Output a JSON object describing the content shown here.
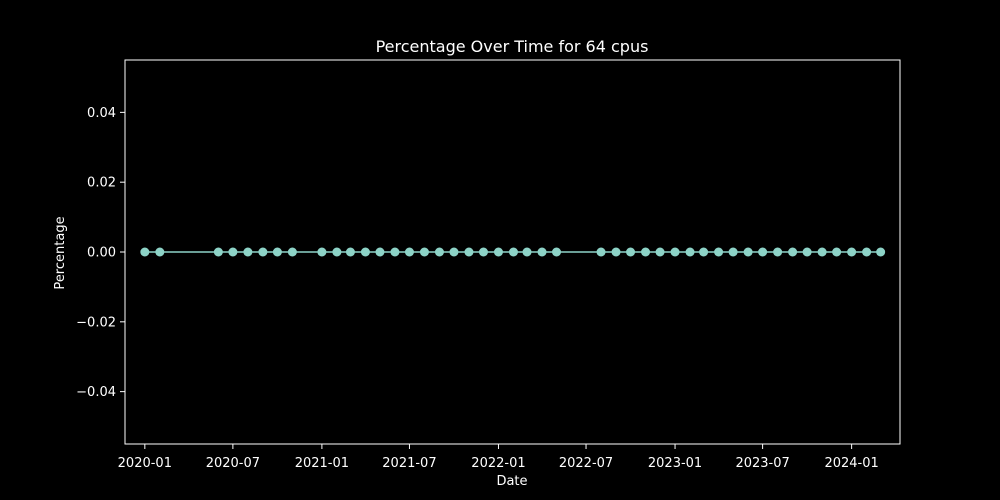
{
  "chart_data": {
    "type": "line",
    "title": "Percentage Over Time for 64 cpus",
    "xlabel": "Date",
    "ylabel": "Percentage",
    "ylim": [
      -0.055,
      0.055
    ],
    "xlim": [
      "2019-11-21",
      "2024-04-10"
    ],
    "grid": false,
    "style": {
      "background": "#000000",
      "foreground": "#ffffff",
      "series_color": "#8dd3c7"
    },
    "x_ticks": [
      "2020-01-01",
      "2020-07-01",
      "2021-01-01",
      "2021-07-01",
      "2022-01-01",
      "2022-07-01",
      "2023-01-01",
      "2023-07-01",
      "2024-01-01"
    ],
    "x_tick_labels": [
      "2020-01",
      "2020-07",
      "2021-01",
      "2021-07",
      "2022-01",
      "2022-07",
      "2023-01",
      "2023-07",
      "2024-01"
    ],
    "y_ticks": [
      -0.04,
      -0.02,
      0.0,
      0.02,
      0.04
    ],
    "y_tick_labels": [
      "−0.04",
      "−0.02",
      "0.00",
      "0.02",
      "0.04"
    ],
    "series": [
      {
        "x": [
          "2020-01-01",
          "2020-02-01",
          "2020-06-01",
          "2020-07-01",
          "2020-08-01",
          "2020-09-01",
          "2020-10-01",
          "2020-11-01",
          "2021-01-01",
          "2021-02-01",
          "2021-03-01",
          "2021-04-01",
          "2021-05-01",
          "2021-06-01",
          "2021-07-01",
          "2021-08-01",
          "2021-09-01",
          "2021-10-01",
          "2021-11-01",
          "2021-12-01",
          "2022-01-01",
          "2022-02-01",
          "2022-03-01",
          "2022-04-01",
          "2022-05-01",
          "2022-08-01",
          "2022-09-01",
          "2022-10-01",
          "2022-11-01",
          "2022-12-01",
          "2023-01-01",
          "2023-02-01",
          "2023-03-01",
          "2023-04-01",
          "2023-05-01",
          "2023-06-01",
          "2023-07-01",
          "2023-08-01",
          "2023-09-01",
          "2023-10-01",
          "2023-11-01",
          "2023-12-01",
          "2024-01-01",
          "2024-02-01",
          "2024-03-01"
        ],
        "y": [
          0,
          0,
          0,
          0,
          0,
          0,
          0,
          0,
          0,
          0,
          0,
          0,
          0,
          0,
          0,
          0,
          0,
          0,
          0,
          0,
          0,
          0,
          0,
          0,
          0,
          0,
          0,
          0,
          0,
          0,
          0,
          0,
          0,
          0,
          0,
          0,
          0,
          0,
          0,
          0,
          0,
          0,
          0,
          0,
          0
        ]
      }
    ]
  }
}
